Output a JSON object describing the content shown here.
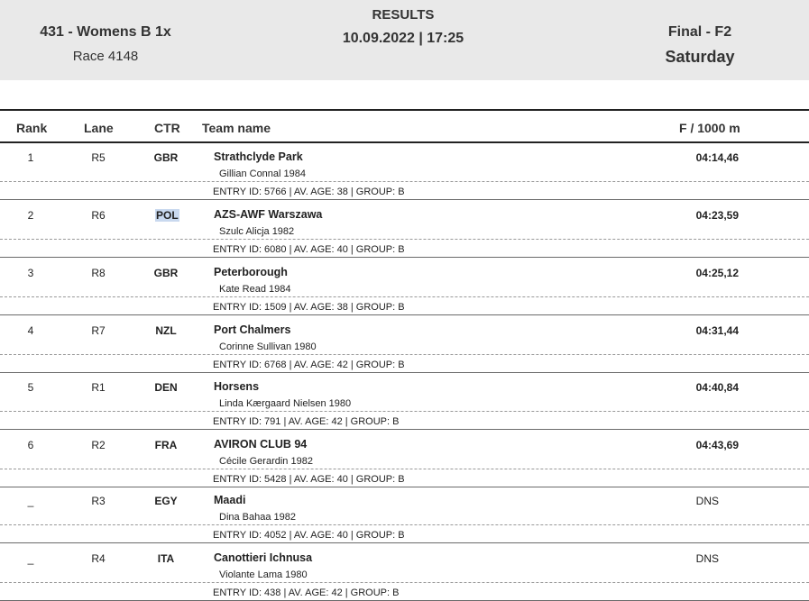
{
  "header": {
    "event": "431 - Womens B 1x",
    "race": "Race 4148",
    "title": "RESULTS",
    "datetime": "10.09.2022 | 17:25",
    "phase": "Final - F2",
    "day": "Saturday"
  },
  "columns": {
    "rank": "Rank",
    "lane": "Lane",
    "ctr": "CTR",
    "team": "Team name",
    "time": "F / 1000 m"
  },
  "rows": [
    {
      "rank": "1",
      "lane": "R5",
      "ctr": "GBR",
      "team": "Strathclyde Park",
      "rower": "Gillian Connal  1984",
      "entry": "ENTRY ID: 5766 | AV. AGE: 38 | GROUP: B",
      "time": "04:14,46"
    },
    {
      "rank": "2",
      "lane": "R6",
      "ctr": "POL",
      "team": "AZS-AWF Warszawa",
      "rower": "Szulc Alicja  1982",
      "entry": "ENTRY ID: 6080 | AV. AGE: 40 | GROUP: B",
      "time": "04:23,59"
    },
    {
      "rank": "3",
      "lane": "R8",
      "ctr": "GBR",
      "team": "Peterborough",
      "rower": "Kate Read  1984",
      "entry": "ENTRY ID: 1509 | AV. AGE: 38 | GROUP: B",
      "time": "04:25,12"
    },
    {
      "rank": "4",
      "lane": "R7",
      "ctr": "NZL",
      "team": "Port Chalmers",
      "rower": "Corinne Sullivan  1980",
      "entry": "ENTRY ID: 6768 | AV. AGE: 42 | GROUP: B",
      "time": "04:31,44"
    },
    {
      "rank": "5",
      "lane": "R1",
      "ctr": "DEN",
      "team": "Horsens",
      "rower": "Linda Kærgaard Nielsen  1980",
      "entry": "ENTRY ID: 791 | AV. AGE: 42 | GROUP: B",
      "time": "04:40,84"
    },
    {
      "rank": "6",
      "lane": "R2",
      "ctr": "FRA",
      "team": "AVIRON CLUB 94",
      "rower": "Cécile Gerardin  1982",
      "entry": "ENTRY ID: 5428 | AV. AGE: 40 | GROUP: B",
      "time": "04:43,69"
    },
    {
      "rank": "_",
      "lane": "R3",
      "ctr": "EGY",
      "team": "Maadi",
      "rower": "Dina Bahaa  1982",
      "entry": "ENTRY ID: 4052 | AV. AGE: 40 | GROUP: B",
      "time": "DNS"
    },
    {
      "rank": "_",
      "lane": "R4",
      "ctr": "ITA",
      "team": "Canottieri Ichnusa",
      "rower": "Violante Lama  1980",
      "entry": "ENTRY ID: 438 | AV. AGE: 42 | GROUP: B",
      "time": "DNS"
    }
  ]
}
